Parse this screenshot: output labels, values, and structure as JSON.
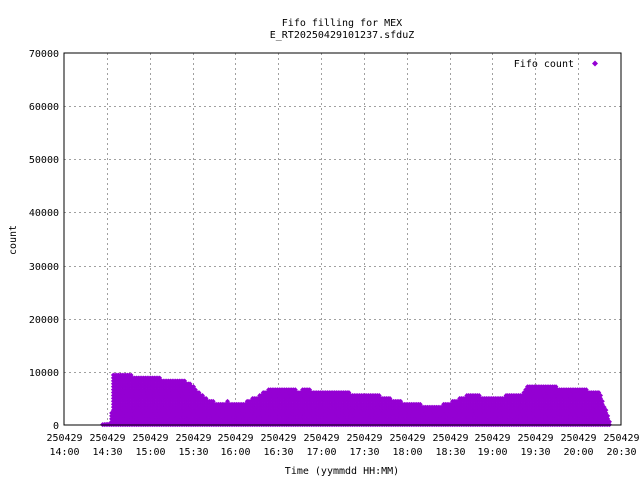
{
  "chart_data": {
    "type": "scatter",
    "title": "Fifo filling for MEX",
    "subtitle": "E_RT20250429101237.sfduZ",
    "xlabel": "Time (yymmdd HH:MM)",
    "ylabel": "count",
    "ylim": [
      0,
      70000
    ],
    "yticks": [
      0,
      10000,
      20000,
      30000,
      40000,
      50000,
      60000,
      70000
    ],
    "xlim_minutes": [
      840,
      1230
    ],
    "xticks": [
      {
        "date": "250429",
        "time": "14:00"
      },
      {
        "date": "250429",
        "time": "14:30"
      },
      {
        "date": "250429",
        "time": "15:00"
      },
      {
        "date": "250429",
        "time": "15:30"
      },
      {
        "date": "250429",
        "time": "16:00"
      },
      {
        "date": "250429",
        "time": "16:30"
      },
      {
        "date": "250429",
        "time": "17:00"
      },
      {
        "date": "250429",
        "time": "17:30"
      },
      {
        "date": "250429",
        "time": "18:00"
      },
      {
        "date": "250429",
        "time": "18:30"
      },
      {
        "date": "250429",
        "time": "19:00"
      },
      {
        "date": "250429",
        "time": "19:30"
      },
      {
        "date": "250429",
        "time": "20:00"
      },
      {
        "date": "250429",
        "time": "20:30"
      }
    ],
    "grid": true,
    "legend_position": "top-right",
    "series": [
      {
        "name": "Fifo count",
        "color": "#9400d3",
        "marker": "diamond",
        "envelope_time": [
          "14:27",
          "14:33",
          "14:34",
          "14:40",
          "14:45",
          "14:50",
          "14:55",
          "15:00",
          "15:05",
          "15:10",
          "15:15",
          "15:20",
          "15:25",
          "15:30",
          "15:35",
          "15:40",
          "15:45",
          "15:50",
          "15:55",
          "16:00",
          "16:05",
          "16:10",
          "16:15",
          "16:20",
          "16:25",
          "16:30",
          "16:35",
          "16:40",
          "16:45",
          "16:50",
          "16:55",
          "17:00",
          "17:05",
          "17:10",
          "17:15",
          "17:20",
          "17:25",
          "17:30",
          "17:35",
          "17:40",
          "17:45",
          "17:50",
          "17:55",
          "18:00",
          "18:05",
          "18:10",
          "18:15",
          "18:20",
          "18:25",
          "18:30",
          "18:35",
          "18:40",
          "18:45",
          "18:50",
          "18:55",
          "19:00",
          "19:05",
          "19:10",
          "19:15",
          "19:20",
          "19:25",
          "19:30",
          "19:35",
          "19:40",
          "19:45",
          "19:50",
          "19:55",
          "20:00",
          "20:05",
          "20:10",
          "20:15",
          "20:22"
        ],
        "envelope_max": [
          100,
          200,
          9800,
          9800,
          9700,
          9000,
          9200,
          9300,
          9100,
          8700,
          8500,
          8400,
          8300,
          7500,
          6200,
          5000,
          4400,
          4300,
          4500,
          3900,
          4100,
          4800,
          5400,
          6400,
          7000,
          6800,
          6900,
          6700,
          6600,
          6800,
          6500,
          6600,
          6400,
          6300,
          6200,
          6100,
          6000,
          5800,
          5900,
          5600,
          5400,
          4900,
          4600,
          4200,
          4000,
          3900,
          3700,
          3700,
          3900,
          4300,
          4800,
          5500,
          5700,
          5600,
          5400,
          5500,
          5400,
          5600,
          5600,
          5700,
          7400,
          7700,
          7600,
          7300,
          7200,
          7200,
          7200,
          7100,
          6800,
          6400,
          6200,
          1100
        ],
        "band_step": 550
      }
    ]
  }
}
